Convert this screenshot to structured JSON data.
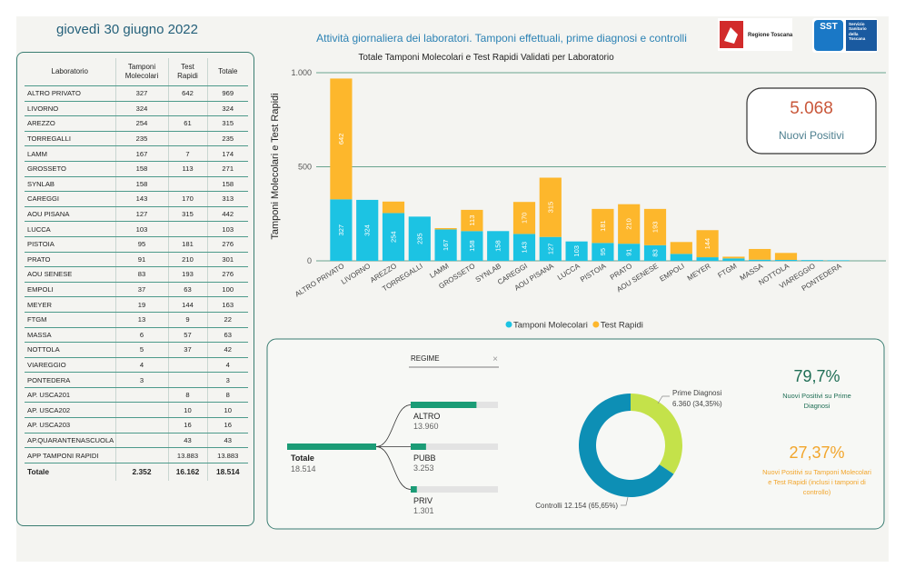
{
  "header": {
    "date": "giovedì 30 giugno 2022",
    "subtitle": "Attività giornaliera dei laboratori. Tamponi effettuali, prime diagnosi e controlli",
    "logos": [
      "Regione Toscana",
      "SST",
      "Servizio Sanitario della Toscana"
    ]
  },
  "table": {
    "columns": [
      "Laboratorio",
      "Tamponi Molecolari",
      "Test Rapidi",
      "Totale"
    ],
    "rows": [
      [
        "ALTRO PRIVATO",
        "327",
        "642",
        "969"
      ],
      [
        "LIVORNO",
        "324",
        null,
        "324"
      ],
      [
        "AREZZO",
        "254",
        "61",
        "315"
      ],
      [
        "TORREGALLI",
        "235",
        null,
        "235"
      ],
      [
        "LAMM",
        "167",
        "7",
        "174"
      ],
      [
        "GROSSETO",
        "158",
        "113",
        "271"
      ],
      [
        "SYNLAB",
        "158",
        null,
        "158"
      ],
      [
        "CAREGGI",
        "143",
        "170",
        "313"
      ],
      [
        "AOU PISANA",
        "127",
        "315",
        "442"
      ],
      [
        "LUCCA",
        "103",
        null,
        "103"
      ],
      [
        "PISTOIA",
        "95",
        "181",
        "276"
      ],
      [
        "PRATO",
        "91",
        "210",
        "301"
      ],
      [
        "AOU SENESE",
        "83",
        "193",
        "276"
      ],
      [
        "EMPOLI",
        "37",
        "63",
        "100"
      ],
      [
        "MEYER",
        "19",
        "144",
        "163"
      ],
      [
        "FTGM",
        "13",
        "9",
        "22"
      ],
      [
        "MASSA",
        "6",
        "57",
        "63"
      ],
      [
        "NOTTOLA",
        "5",
        "37",
        "42"
      ],
      [
        "VIAREGGIO",
        "4",
        null,
        "4"
      ],
      [
        "PONTEDERA",
        "3",
        null,
        "3"
      ],
      [
        "AP. USCA201",
        null,
        "8",
        "8"
      ],
      [
        "AP. USCA202",
        null,
        "10",
        "10"
      ],
      [
        "AP. USCA203",
        null,
        "16",
        "16"
      ],
      [
        "AP.QUARANTENASCUOLA",
        null,
        "43",
        "43"
      ],
      [
        "APP TAMPONI RAPIDI",
        null,
        "13.883",
        "13.883"
      ]
    ],
    "total": [
      "Totale",
      "2.352",
      "16.162",
      "18.514"
    ]
  },
  "chart_data": [
    {
      "type": "bar",
      "title": "Totale Tamponi Molecolari e Test Rapidi Validati per Laboratorio",
      "y_label": "Tamponi Molecolari e Test Rapidi",
      "stacked": true,
      "categories": [
        "ALTRO PRIVATO",
        "LIVORNO",
        "AREZZO",
        "TORREGALLI",
        "LAMM",
        "GROSSETO",
        "SYNLAB",
        "CAREGGI",
        "AOU PISANA",
        "LUCCA",
        "PISTOIA",
        "PRATO",
        "AOU SENESE",
        "EMPOLI",
        "MEYER",
        "FTGM",
        "MASSA",
        "NOTTOLA",
        "VIAREGGIO",
        "PONTEDERA"
      ],
      "series": [
        {
          "name": "Tamponi Molecolari",
          "color": "#1cc3e3",
          "values": [
            327,
            324,
            254,
            235,
            167,
            158,
            158,
            143,
            127,
            103,
            95,
            91,
            83,
            37,
            19,
            13,
            6,
            5,
            4,
            3
          ]
        },
        {
          "name": "Test Rapidi",
          "color": "#fdb72c",
          "values": [
            642,
            null,
            61,
            null,
            7,
            113,
            null,
            170,
            315,
            null,
            181,
            210,
            193,
            63,
            144,
            9,
            57,
            37,
            null,
            null
          ]
        }
      ],
      "ylim": [
        0,
        1000
      ],
      "yticks": [
        0,
        500,
        {
          "value": 1000,
          "label": "1.000"
        }
      ],
      "grid": true,
      "legend": "bottom"
    },
    {
      "type": "pie",
      "donut": true,
      "categories": [
        "Prime Diagnosi",
        "Controlli"
      ],
      "values": [
        6360,
        12154
      ],
      "value_labels": [
        "6.360 (34,35%)",
        "12.154 (65,65%)"
      ],
      "colors": [
        "#c4e24a",
        "#0d8fb5"
      ]
    }
  ],
  "kpis": [
    {
      "value": "5.068",
      "label": "Nuovi Positivi"
    },
    {
      "value": "79,7%",
      "label": "Nuovi Positivi su Prime Diagnosi"
    },
    {
      "value": "27,37%",
      "label": "Nuovi Positivi su Tamponi Molecolari e Test Rapidi (inclusi i tamponi di controllo)"
    }
  ],
  "decomposition": {
    "filter": "REGIME",
    "root": {
      "name": "Totale",
      "value": 18514,
      "label": "18.514"
    },
    "nodes": [
      {
        "name": "ALTRO",
        "value": 13960,
        "label": "13.960"
      },
      {
        "name": "PUBB",
        "value": 3253,
        "label": "3.253"
      },
      {
        "name": "PRIV",
        "value": 1301,
        "label": "1.301"
      }
    ]
  }
}
